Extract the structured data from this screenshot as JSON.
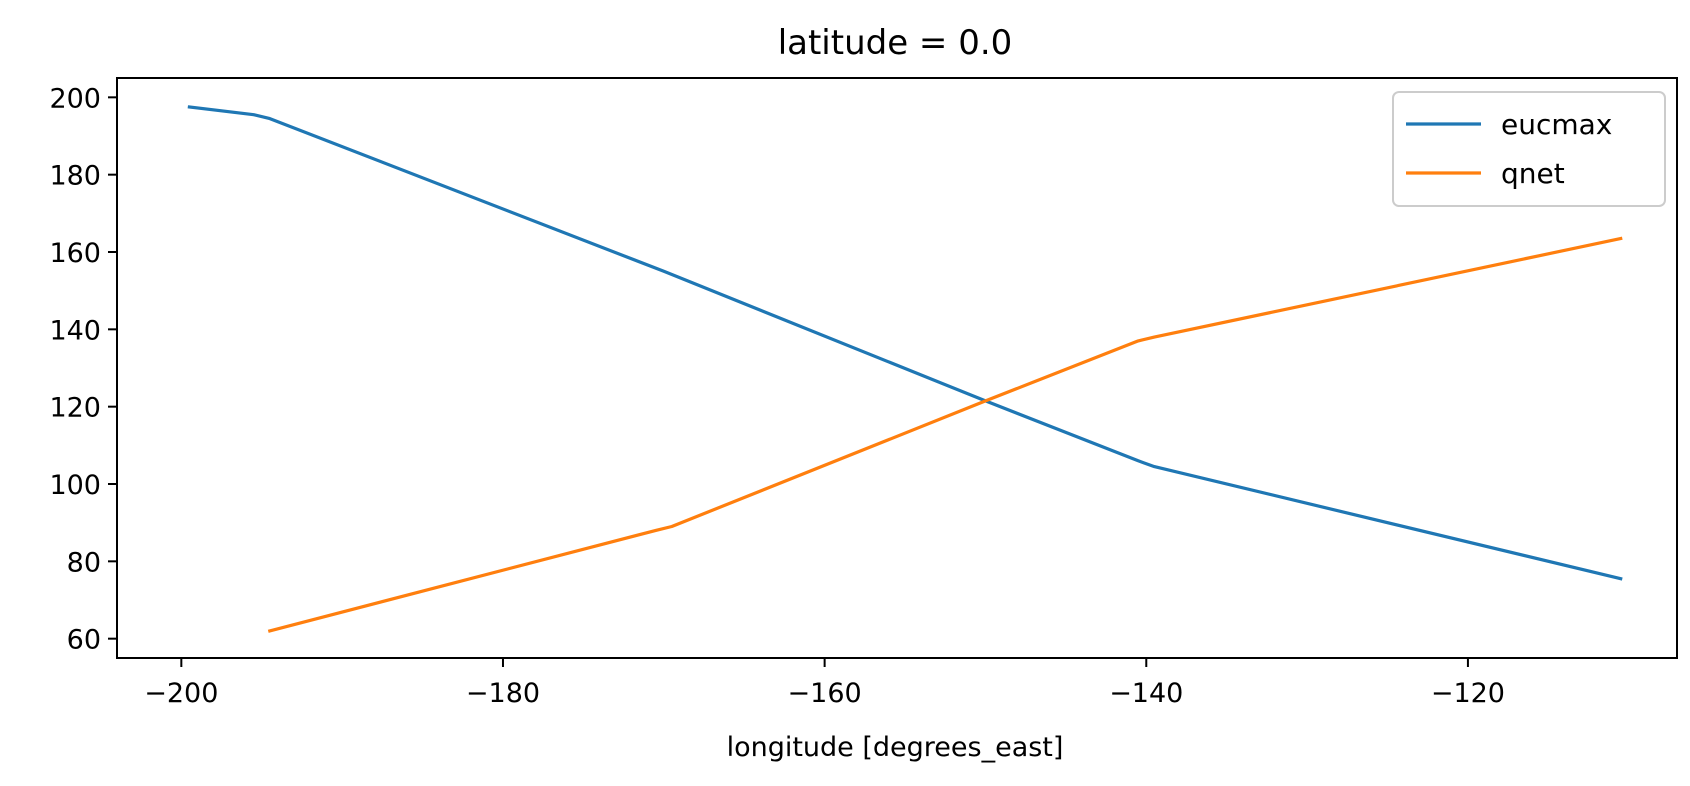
{
  "chart_data": {
    "type": "line",
    "title": "latitude = 0.0",
    "xlabel": "longitude [degrees_east]",
    "ylabel": "",
    "xlim": [
      -204,
      -107
    ],
    "ylim": [
      55,
      205
    ],
    "xticks": [
      -200,
      -180,
      -160,
      -140,
      -120
    ],
    "xtick_labels": [
      "−200",
      "−180",
      "−160",
      "−140",
      "−120"
    ],
    "yticks": [
      60,
      80,
      100,
      120,
      140,
      160,
      180,
      200
    ],
    "ytick_labels": [
      "60",
      "80",
      "100",
      "120",
      "140",
      "160",
      "180",
      "200"
    ],
    "grid": false,
    "legend_position": "upper right",
    "series": [
      {
        "name": "eucmax",
        "color": "#1f77b4",
        "x": [
          -199.5,
          -195.5,
          -194.5,
          -170,
          -150,
          -140.5,
          -139.5,
          -110.5
        ],
        "y": [
          197.5,
          195.5,
          194.5,
          155,
          121.5,
          106,
          104.5,
          75.5
        ]
      },
      {
        "name": "qnet",
        "color": "#ff7f0e",
        "x": [
          -194.5,
          -170.5,
          -169.5,
          -150,
          -140.5,
          -139.5,
          -110.5
        ],
        "y": [
          62,
          88,
          89,
          121.5,
          137,
          138,
          163.5
        ]
      }
    ]
  }
}
